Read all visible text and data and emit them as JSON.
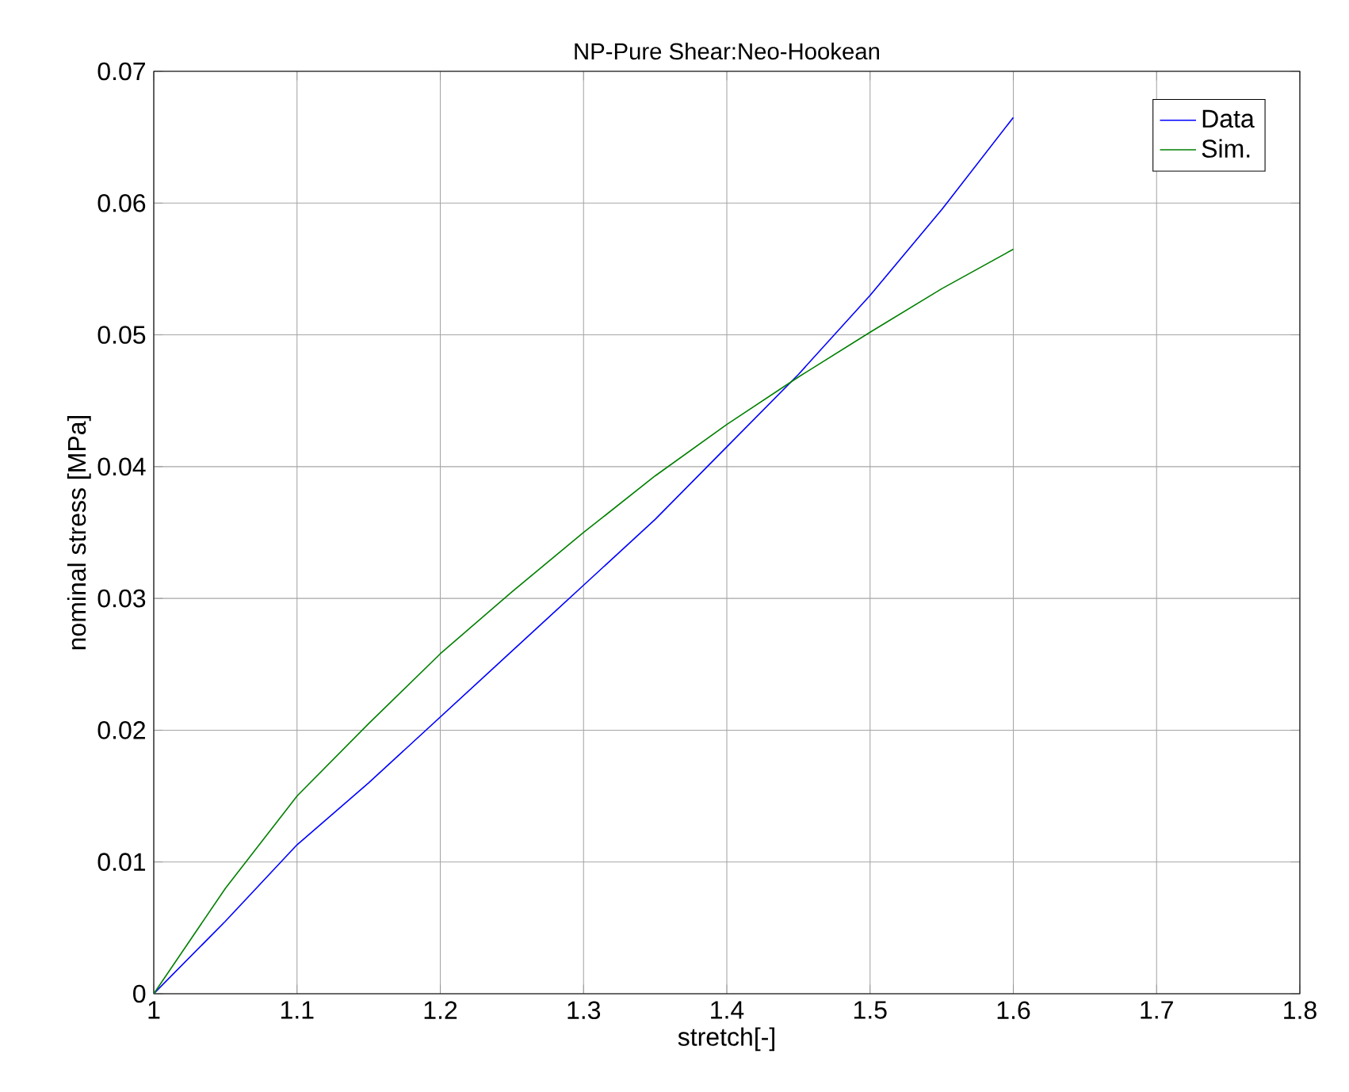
{
  "chart_data": {
    "type": "line",
    "title": "NP-Pure Shear:Neo-Hookean",
    "xlabel": "stretch[-]",
    "ylabel": "nominal stress [MPa]",
    "x": [
      1,
      1.05,
      1.1,
      1.15,
      1.2,
      1.25,
      1.3,
      1.35,
      1.4,
      1.45,
      1.5,
      1.55,
      1.6
    ],
    "series": [
      {
        "name": "Data",
        "color": "#0000ff",
        "values": [
          0,
          0.0055,
          0.0113,
          0.016,
          0.021,
          0.026,
          0.031,
          0.036,
          0.0415,
          0.047,
          0.053,
          0.0595,
          0.0665
        ]
      },
      {
        "name": "Sim.",
        "color": "#008000",
        "values": [
          0,
          0.008,
          0.015,
          0.0205,
          0.0258,
          0.0305,
          0.035,
          0.0393,
          0.0432,
          0.0468,
          0.0502,
          0.0535,
          0.0565
        ]
      }
    ],
    "xlim": [
      1,
      1.8
    ],
    "ylim": [
      0,
      0.07
    ],
    "xticks": [
      1,
      1.1,
      1.2,
      1.3,
      1.4,
      1.5,
      1.6,
      1.7,
      1.8
    ],
    "yticks": [
      0,
      0.01,
      0.02,
      0.03,
      0.04,
      0.05,
      0.06,
      0.07
    ],
    "grid": true,
    "legend": "top right",
    "marker": "none",
    "line_style": "solid"
  }
}
